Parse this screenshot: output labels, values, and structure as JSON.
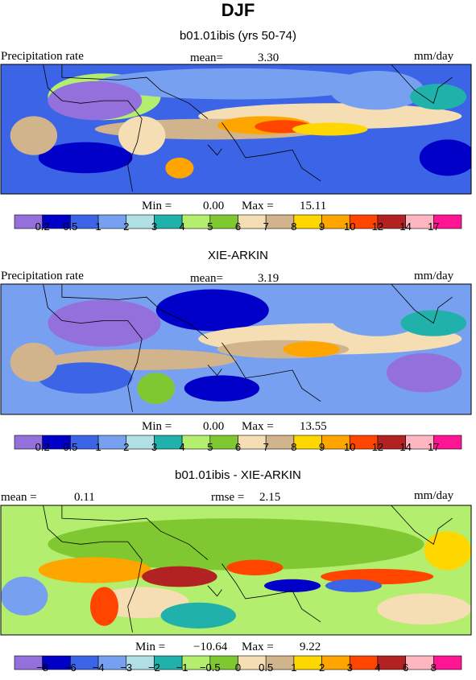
{
  "main_title": "DJF",
  "panels": [
    {
      "title": "b01.01ibis (yrs 50-74)",
      "left_label": "Precipitation rate",
      "center_label": "mean=",
      "center_value": "3.30",
      "right_label": "mm/day",
      "min_label": "Min =",
      "min_value": "0.00",
      "max_label": "Max =",
      "max_value": "15.11"
    },
    {
      "title": "XIE-ARKIN",
      "left_label": "Precipitation rate",
      "center_label": "mean=",
      "center_value": "3.19",
      "right_label": "mm/day",
      "min_label": "Min =",
      "min_value": "0.00",
      "max_label": "Max =",
      "max_value": "13.55"
    },
    {
      "title": "b01.01ibis - XIE-ARKIN",
      "left_label": "mean =",
      "left_value": "0.11",
      "center_label": "rmse =",
      "center_value": "2.15",
      "right_label": "mm/day",
      "min_label": "Min =",
      "min_value": "−10.64",
      "max_label": "Max =",
      "max_value": "9.22"
    }
  ],
  "chart_data": [
    {
      "type": "heatmap",
      "title": "b01.01ibis (yrs 50-74)",
      "variable": "Precipitation rate",
      "units": "mm/day",
      "mean": 3.3,
      "min": 0.0,
      "max": 15.11,
      "colorbar_levels": [
        "0.2",
        "0.5",
        "1",
        "2",
        "3",
        "4",
        "5",
        "6",
        "7",
        "8",
        "9",
        "10",
        "12",
        "14",
        "17"
      ],
      "colorbar_colors": [
        "#9370db",
        "#0000c8",
        "#3c64e6",
        "#78a0f0",
        "#b0e0e6",
        "#20b2aa",
        "#b4ee6e",
        "#7fc832",
        "#f5deb3",
        "#d2b48c",
        "#ffd700",
        "#ffa500",
        "#ff4500",
        "#b22222",
        "#ffb6c1",
        "#ff1493"
      ]
    },
    {
      "type": "heatmap",
      "title": "XIE-ARKIN",
      "variable": "Precipitation rate",
      "units": "mm/day",
      "mean": 3.19,
      "min": 0.0,
      "max": 13.55,
      "colorbar_levels": [
        "0.2",
        "0.5",
        "1",
        "2",
        "3",
        "4",
        "5",
        "6",
        "7",
        "8",
        "9",
        "10",
        "12",
        "14",
        "17"
      ],
      "colorbar_colors": [
        "#9370db",
        "#0000c8",
        "#3c64e6",
        "#78a0f0",
        "#b0e0e6",
        "#20b2aa",
        "#b4ee6e",
        "#7fc832",
        "#f5deb3",
        "#d2b48c",
        "#ffd700",
        "#ffa500",
        "#ff4500",
        "#b22222",
        "#ffb6c1",
        "#ff1493"
      ]
    },
    {
      "type": "heatmap",
      "title": "b01.01ibis - XIE-ARKIN",
      "units": "mm/day",
      "mean": 0.11,
      "rmse": 2.15,
      "min": -10.64,
      "max": 9.22,
      "colorbar_levels": [
        "−8",
        "−6",
        "−4",
        "−3",
        "−2",
        "−1",
        "−0.5",
        "0",
        "0.5",
        "1",
        "2",
        "3",
        "4",
        "6",
        "8"
      ],
      "colorbar_colors": [
        "#9370db",
        "#0000c8",
        "#3c64e6",
        "#78a0f0",
        "#b0e0e6",
        "#20b2aa",
        "#b4ee6e",
        "#7fc832",
        "#f5deb3",
        "#d2b48c",
        "#ffd700",
        "#ffa500",
        "#ff4500",
        "#b22222",
        "#ffb6c1",
        "#ff1493"
      ]
    }
  ]
}
